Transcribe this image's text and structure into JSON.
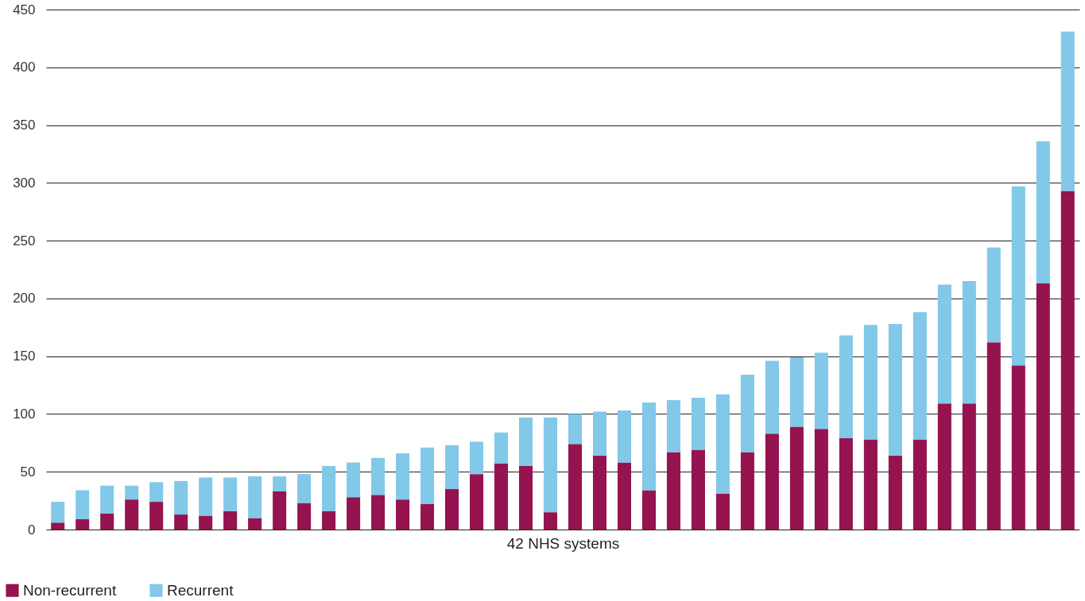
{
  "chart_data": {
    "type": "bar",
    "stacked": true,
    "xlabel": "42 NHS systems",
    "categories": [
      null,
      null,
      null,
      null,
      null,
      null,
      null,
      null,
      null,
      null,
      null,
      null,
      null,
      null,
      null,
      null,
      null,
      null,
      null,
      null,
      null,
      null,
      null,
      null,
      null,
      null,
      null,
      null,
      null,
      null,
      null,
      null,
      null,
      null,
      null,
      null,
      null,
      null,
      null,
      null,
      null,
      null
    ],
    "series": [
      {
        "name": "Non-recurrent",
        "color": "#95134f",
        "values": [
          6,
          9,
          14,
          26,
          24,
          13,
          12,
          16,
          10,
          33,
          23,
          16,
          28,
          30,
          26,
          22,
          35,
          48,
          57,
          55,
          15,
          74,
          64,
          58,
          34,
          67,
          69,
          31,
          67,
          83,
          89,
          87,
          79,
          78,
          64,
          78,
          109,
          109,
          162,
          142,
          213,
          293
        ]
      },
      {
        "name": "Recurrent",
        "color": "#82c8e8",
        "values": [
          18,
          25,
          24,
          12,
          17,
          29,
          33,
          29,
          36,
          13,
          25,
          39,
          30,
          32,
          40,
          49,
          38,
          28,
          27,
          42,
          82,
          26,
          38,
          45,
          76,
          45,
          45,
          86,
          67,
          63,
          60,
          66,
          89,
          99,
          114,
          110,
          103,
          106,
          82,
          155,
          123,
          138
        ]
      }
    ],
    "ylim": [
      0,
      450
    ],
    "yticks": [
      0,
      50,
      100,
      150,
      200,
      250,
      300,
      350,
      400,
      450
    ],
    "grid": "y",
    "legend": "bottom left"
  }
}
